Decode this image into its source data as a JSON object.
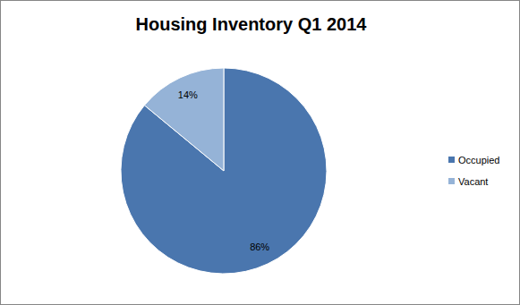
{
  "chart_data": {
    "type": "pie",
    "title": "Housing Inventory Q1 2014",
    "categories": [
      "Occupied",
      "Vacant"
    ],
    "values": [
      86,
      14
    ],
    "value_labels": [
      "86%",
      "14%"
    ],
    "colors": [
      "#4a76ae",
      "#95b3d7"
    ],
    "data_labels": true,
    "legend": "right"
  }
}
